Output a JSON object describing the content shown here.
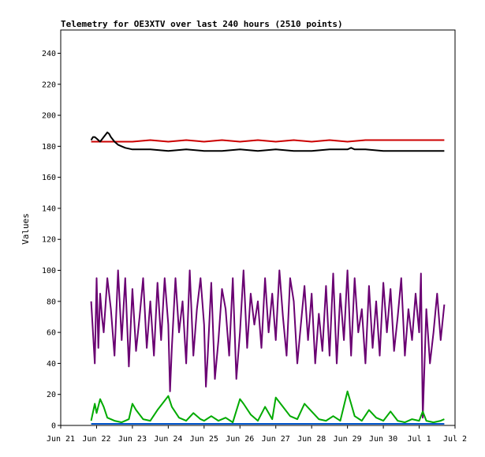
{
  "chart_data": {
    "type": "line",
    "title": "Telemetry for OE3XTV over last 240 hours (2510 points)",
    "xlabel": "",
    "ylabel": "Values",
    "ylim": [
      0,
      255
    ],
    "xlim": [
      0,
      11
    ],
    "grid": false,
    "x_ticks": [
      {
        "x": 0,
        "label": "Jun 21"
      },
      {
        "x": 1,
        "label": "Jun 22"
      },
      {
        "x": 2,
        "label": "Jun 23"
      },
      {
        "x": 3,
        "label": "Jun 24"
      },
      {
        "x": 4,
        "label": "Jun 25"
      },
      {
        "x": 5,
        "label": "Jun 26"
      },
      {
        "x": 6,
        "label": "Jun 27"
      },
      {
        "x": 7,
        "label": "Jun 28"
      },
      {
        "x": 8,
        "label": "Jun 29"
      },
      {
        "x": 9,
        "label": "Jun 30"
      },
      {
        "x": 10,
        "label": "Jul 1"
      },
      {
        "x": 11,
        "label": "Jul 2"
      }
    ],
    "y_ticks": [
      0,
      20,
      40,
      60,
      80,
      100,
      120,
      140,
      160,
      180,
      200,
      220,
      240
    ],
    "series": [
      {
        "color": "#cc0000",
        "x": [
          0.85,
          1.05,
          1.3,
          1.6,
          2.0,
          2.5,
          3.0,
          3.5,
          4.0,
          4.5,
          5.0,
          5.5,
          6.0,
          6.5,
          7.0,
          7.5,
          8.0,
          8.5,
          9.0,
          9.5,
          10.0,
          10.5,
          10.7
        ],
        "y": [
          183,
          183,
          183,
          183,
          183,
          184,
          183,
          184,
          183,
          184,
          183,
          184,
          183,
          184,
          183,
          184,
          183,
          184,
          184,
          184,
          184,
          184,
          184
        ]
      },
      {
        "color": "#000000",
        "x": [
          0.85,
          0.9,
          0.95,
          1.0,
          1.05,
          1.1,
          1.2,
          1.3,
          1.35,
          1.4,
          1.5,
          1.6,
          1.7,
          1.8,
          2.0,
          2.2,
          2.5,
          3.0,
          3.5,
          4.0,
          4.5,
          5.0,
          5.5,
          6.0,
          6.5,
          7.0,
          7.5,
          8.0,
          8.1,
          8.2,
          8.5,
          9.0,
          9.5,
          10.0,
          10.5,
          10.7
        ],
        "y": [
          184,
          186,
          186,
          185,
          184,
          183,
          186,
          189,
          188,
          186,
          183,
          181,
          180,
          179,
          178,
          178,
          178,
          177,
          178,
          177,
          177,
          178,
          177,
          178,
          177,
          177,
          178,
          178,
          179,
          178,
          178,
          177,
          177,
          177,
          177,
          177
        ]
      },
      {
        "color": "#6a0072",
        "x": [
          0.85,
          0.95,
          1.0,
          1.05,
          1.1,
          1.15,
          1.2,
          1.3,
          1.4,
          1.5,
          1.6,
          1.7,
          1.8,
          1.9,
          2.0,
          2.1,
          2.2,
          2.3,
          2.4,
          2.5,
          2.6,
          2.7,
          2.8,
          2.9,
          3.0,
          3.05,
          3.1,
          3.2,
          3.3,
          3.4,
          3.5,
          3.6,
          3.7,
          3.8,
          3.9,
          4.0,
          4.05,
          4.1,
          4.2,
          4.3,
          4.4,
          4.5,
          4.6,
          4.7,
          4.8,
          4.9,
          5.0,
          5.1,
          5.2,
          5.3,
          5.4,
          5.5,
          5.6,
          5.7,
          5.8,
          5.9,
          6.0,
          6.1,
          6.2,
          6.3,
          6.4,
          6.5,
          6.6,
          6.7,
          6.8,
          6.9,
          7.0,
          7.1,
          7.2,
          7.3,
          7.4,
          7.5,
          7.6,
          7.7,
          7.8,
          7.9,
          8.0,
          8.1,
          8.2,
          8.3,
          8.4,
          8.5,
          8.6,
          8.7,
          8.8,
          8.9,
          9.0,
          9.1,
          9.2,
          9.3,
          9.4,
          9.5,
          9.6,
          9.7,
          9.8,
          9.9,
          10.0,
          10.05,
          10.1,
          10.2,
          10.3,
          10.4,
          10.5,
          10.6,
          10.7
        ],
        "y": [
          80,
          40,
          95,
          50,
          85,
          70,
          60,
          95,
          75,
          45,
          100,
          55,
          95,
          38,
          88,
          48,
          70,
          95,
          50,
          80,
          45,
          92,
          55,
          95,
          65,
          22,
          50,
          95,
          60,
          80,
          40,
          100,
          45,
          75,
          95,
          65,
          25,
          45,
          92,
          30,
          55,
          88,
          75,
          45,
          95,
          30,
          60,
          100,
          50,
          85,
          65,
          80,
          50,
          95,
          60,
          85,
          55,
          100,
          70,
          45,
          95,
          80,
          40,
          65,
          90,
          55,
          85,
          40,
          72,
          48,
          90,
          45,
          98,
          40,
          85,
          55,
          100,
          45,
          95,
          60,
          75,
          40,
          90,
          50,
          80,
          45,
          92,
          60,
          88,
          48,
          70,
          95,
          45,
          75,
          55,
          85,
          60,
          98,
          5,
          75,
          40,
          60,
          85,
          55,
          78
        ]
      },
      {
        "color": "#00aa00",
        "x": [
          0.85,
          0.95,
          1.0,
          1.1,
          1.2,
          1.3,
          1.5,
          1.7,
          1.9,
          2.0,
          2.1,
          2.3,
          2.5,
          2.7,
          3.0,
          3.1,
          3.3,
          3.5,
          3.7,
          3.9,
          4.0,
          4.2,
          4.4,
          4.6,
          4.8,
          5.0,
          5.1,
          5.3,
          5.5,
          5.7,
          5.9,
          6.0,
          6.2,
          6.4,
          6.6,
          6.8,
          7.0,
          7.2,
          7.4,
          7.6,
          7.8,
          8.0,
          8.1,
          8.2,
          8.4,
          8.6,
          8.8,
          9.0,
          9.2,
          9.4,
          9.6,
          9.8,
          10.0,
          10.1,
          10.2,
          10.4,
          10.6,
          10.7
        ],
        "y": [
          3,
          14,
          8,
          17,
          12,
          5,
          3,
          2,
          4,
          14,
          10,
          4,
          3,
          10,
          19,
          12,
          5,
          3,
          8,
          4,
          3,
          6,
          3,
          5,
          2,
          17,
          14,
          7,
          3,
          12,
          4,
          18,
          12,
          6,
          4,
          14,
          9,
          4,
          3,
          6,
          3,
          22,
          14,
          6,
          3,
          10,
          5,
          3,
          9,
          3,
          2,
          4,
          3,
          9,
          3,
          2,
          3,
          4
        ]
      },
      {
        "color": "#0055cc",
        "x": [
          0.85,
          10.7
        ],
        "y": [
          1,
          1
        ]
      }
    ]
  }
}
